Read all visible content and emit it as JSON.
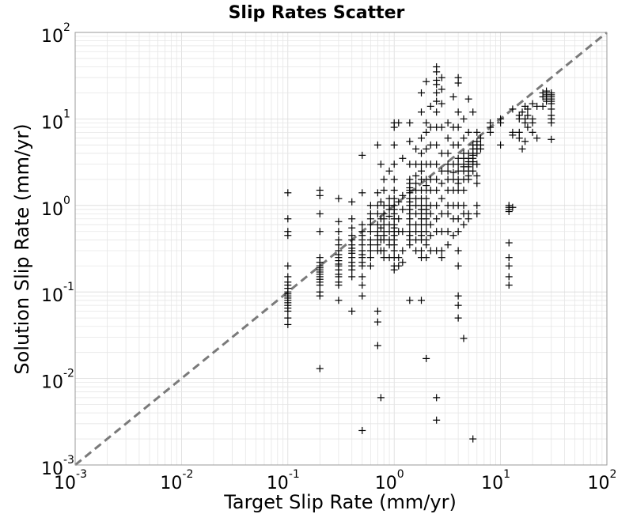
{
  "chart_data": {
    "type": "scatter",
    "title": "Slip Rates Scatter",
    "xlabel": "Target Slip Rate (mm/yr)",
    "ylabel": "Solution Slip Rate (mm/yr)",
    "xscale": "log",
    "yscale": "log",
    "xlim": [
      0.001,
      100
    ],
    "ylim": [
      0.001,
      100
    ],
    "grid": true,
    "marker": "+",
    "marker_color": "#000000",
    "reference_line": {
      "style": "dashed",
      "color": "#7a7a7a",
      "from": [
        0.001,
        0.001
      ],
      "to": [
        100,
        100
      ]
    },
    "x_ticks": [
      {
        "base": "10",
        "exp": "-3"
      },
      {
        "base": "10",
        "exp": "-2"
      },
      {
        "base": "10",
        "exp": "-1"
      },
      {
        "base": "10",
        "exp": "0"
      },
      {
        "base": "10",
        "exp": "1"
      },
      {
        "base": "10",
        "exp": "2"
      }
    ],
    "y_ticks": [
      {
        "base": "10",
        "exp": "-3"
      },
      {
        "base": "10",
        "exp": "-2"
      },
      {
        "base": "10",
        "exp": "-1"
      },
      {
        "base": "10",
        "exp": "0"
      },
      {
        "base": "10",
        "exp": "1"
      },
      {
        "base": "10",
        "exp": "2"
      }
    ],
    "points": [
      [
        0.1,
        1.4
      ],
      [
        0.1,
        0.7
      ],
      [
        0.1,
        0.5
      ],
      [
        0.1,
        0.45
      ],
      [
        0.1,
        0.2
      ],
      [
        0.1,
        0.15
      ],
      [
        0.1,
        0.13
      ],
      [
        0.1,
        0.12
      ],
      [
        0.1,
        0.11
      ],
      [
        0.1,
        0.1
      ],
      [
        0.1,
        0.095
      ],
      [
        0.1,
        0.09
      ],
      [
        0.1,
        0.085
      ],
      [
        0.1,
        0.08
      ],
      [
        0.1,
        0.075
      ],
      [
        0.1,
        0.07
      ],
      [
        0.1,
        0.065
      ],
      [
        0.1,
        0.06
      ],
      [
        0.1,
        0.05
      ],
      [
        0.1,
        0.042
      ],
      [
        0.2,
        1.5
      ],
      [
        0.2,
        1.3
      ],
      [
        0.2,
        0.8
      ],
      [
        0.2,
        0.5
      ],
      [
        0.2,
        0.25
      ],
      [
        0.2,
        0.22
      ],
      [
        0.2,
        0.2
      ],
      [
        0.2,
        0.19
      ],
      [
        0.2,
        0.18
      ],
      [
        0.2,
        0.17
      ],
      [
        0.2,
        0.16
      ],
      [
        0.2,
        0.15
      ],
      [
        0.2,
        0.14
      ],
      [
        0.2,
        0.13
      ],
      [
        0.2,
        0.12
      ],
      [
        0.2,
        0.1
      ],
      [
        0.2,
        0.09
      ],
      [
        0.2,
        0.013
      ],
      [
        0.3,
        1.2
      ],
      [
        0.3,
        0.65
      ],
      [
        0.3,
        0.5
      ],
      [
        0.3,
        0.4
      ],
      [
        0.3,
        0.35
      ],
      [
        0.3,
        0.3
      ],
      [
        0.3,
        0.27
      ],
      [
        0.3,
        0.25
      ],
      [
        0.3,
        0.23
      ],
      [
        0.3,
        0.21
      ],
      [
        0.3,
        0.2
      ],
      [
        0.3,
        0.18
      ],
      [
        0.3,
        0.16
      ],
      [
        0.3,
        0.15
      ],
      [
        0.3,
        0.13
      ],
      [
        0.3,
        0.12
      ],
      [
        0.3,
        0.08
      ],
      [
        0.4,
        1.1
      ],
      [
        0.4,
        0.7
      ],
      [
        0.4,
        0.55
      ],
      [
        0.4,
        0.45
      ],
      [
        0.4,
        0.4
      ],
      [
        0.4,
        0.35
      ],
      [
        0.4,
        0.32
      ],
      [
        0.4,
        0.3
      ],
      [
        0.4,
        0.28
      ],
      [
        0.4,
        0.25
      ],
      [
        0.4,
        0.22
      ],
      [
        0.4,
        0.2
      ],
      [
        0.4,
        0.18
      ],
      [
        0.4,
        0.15
      ],
      [
        0.4,
        0.06
      ],
      [
        0.5,
        3.8
      ],
      [
        0.5,
        1.4
      ],
      [
        0.5,
        0.6
      ],
      [
        0.5,
        0.5
      ],
      [
        0.5,
        0.45
      ],
      [
        0.5,
        0.4
      ],
      [
        0.5,
        0.35
      ],
      [
        0.5,
        0.3
      ],
      [
        0.5,
        0.27
      ],
      [
        0.5,
        0.25
      ],
      [
        0.5,
        0.22
      ],
      [
        0.5,
        0.2
      ],
      [
        0.5,
        0.15
      ],
      [
        0.5,
        0.12
      ],
      [
        0.5,
        0.09
      ],
      [
        0.5,
        0.0025
      ],
      [
        0.6,
        1.0
      ],
      [
        0.6,
        0.7
      ],
      [
        0.6,
        0.6
      ],
      [
        0.6,
        0.5
      ],
      [
        0.6,
        0.4
      ],
      [
        0.6,
        0.35
      ],
      [
        0.6,
        0.3
      ],
      [
        0.6,
        0.2
      ],
      [
        0.6,
        0.25
      ],
      [
        0.6,
        0.8
      ],
      [
        0.7,
        5.0
      ],
      [
        0.7,
        1.4
      ],
      [
        0.7,
        1.0
      ],
      [
        0.7,
        0.8
      ],
      [
        0.7,
        0.6
      ],
      [
        0.7,
        0.5
      ],
      [
        0.7,
        0.45
      ],
      [
        0.7,
        0.4
      ],
      [
        0.7,
        0.35
      ],
      [
        0.7,
        0.3
      ],
      [
        0.7,
        0.06
      ],
      [
        0.7,
        0.045
      ],
      [
        0.7,
        0.024
      ],
      [
        0.75,
        3.0
      ],
      [
        0.75,
        1.1
      ],
      [
        0.75,
        0.7
      ],
      [
        0.75,
        0.55
      ],
      [
        0.75,
        0.4
      ],
      [
        0.75,
        0.3
      ],
      [
        0.75,
        0.006
      ],
      [
        0.8,
        2.0
      ],
      [
        0.8,
        1.5
      ],
      [
        0.8,
        1.0
      ],
      [
        0.8,
        0.8
      ],
      [
        0.8,
        0.7
      ],
      [
        0.8,
        0.6
      ],
      [
        0.8,
        0.5
      ],
      [
        0.8,
        0.45
      ],
      [
        0.8,
        0.4
      ],
      [
        0.8,
        0.3
      ],
      [
        0.8,
        0.25
      ],
      [
        0.9,
        2.5
      ],
      [
        0.9,
        1.2
      ],
      [
        0.9,
        1.0
      ],
      [
        0.9,
        0.9
      ],
      [
        0.9,
        0.75
      ],
      [
        0.9,
        0.6
      ],
      [
        0.9,
        0.5
      ],
      [
        0.9,
        0.4
      ],
      [
        0.9,
        0.35
      ],
      [
        0.9,
        0.25
      ],
      [
        1.0,
        9.0
      ],
      [
        1.0,
        8.0
      ],
      [
        1.0,
        5.0
      ],
      [
        1.0,
        3.0
      ],
      [
        1.0,
        2.0
      ],
      [
        1.0,
        1.5
      ],
      [
        1.0,
        1.2
      ],
      [
        1.0,
        1.0
      ],
      [
        1.0,
        0.9
      ],
      [
        1.0,
        0.8
      ],
      [
        1.0,
        0.7
      ],
      [
        1.0,
        0.6
      ],
      [
        1.0,
        0.55
      ],
      [
        1.0,
        0.5
      ],
      [
        1.0,
        0.45
      ],
      [
        1.0,
        0.4
      ],
      [
        1.0,
        0.35
      ],
      [
        1.0,
        0.3
      ],
      [
        1.0,
        0.25
      ],
      [
        1.0,
        0.2
      ],
      [
        1.0,
        0.18
      ],
      [
        1.1,
        9.0
      ],
      [
        1.1,
        1.1
      ],
      [
        1.1,
        0.7
      ],
      [
        1.1,
        0.5
      ],
      [
        1.1,
        0.25
      ],
      [
        1.1,
        0.2
      ],
      [
        1.2,
        3.5
      ],
      [
        1.2,
        1.3
      ],
      [
        1.2,
        0.9
      ],
      [
        1.2,
        0.5
      ],
      [
        1.2,
        0.3
      ],
      [
        1.2,
        0.22
      ],
      [
        1.4,
        9.0
      ],
      [
        1.4,
        5.5
      ],
      [
        1.4,
        3.0
      ],
      [
        1.4,
        2.0
      ],
      [
        1.4,
        1.8
      ],
      [
        1.4,
        1.6
      ],
      [
        1.4,
        1.5
      ],
      [
        1.4,
        1.4
      ],
      [
        1.4,
        1.2
      ],
      [
        1.4,
        1.1
      ],
      [
        1.4,
        1.0
      ],
      [
        1.4,
        0.9
      ],
      [
        1.4,
        0.8
      ],
      [
        1.4,
        0.7
      ],
      [
        1.4,
        0.6
      ],
      [
        1.4,
        0.5
      ],
      [
        1.4,
        0.45
      ],
      [
        1.4,
        0.4
      ],
      [
        1.4,
        0.35
      ],
      [
        1.4,
        0.08
      ],
      [
        1.6,
        4.5
      ],
      [
        1.6,
        3.0
      ],
      [
        1.6,
        2.2
      ],
      [
        1.6,
        1.8
      ],
      [
        1.6,
        1.5
      ],
      [
        1.6,
        1.2
      ],
      [
        1.6,
        1.0
      ],
      [
        1.6,
        0.8
      ],
      [
        1.6,
        0.6
      ],
      [
        1.6,
        0.5
      ],
      [
        1.6,
        0.4
      ],
      [
        1.6,
        0.3
      ],
      [
        1.8,
        20.0
      ],
      [
        1.8,
        12.0
      ],
      [
        1.8,
        6.0
      ],
      [
        1.8,
        4.0
      ],
      [
        1.8,
        3.0
      ],
      [
        1.8,
        2.5
      ],
      [
        1.8,
        2.0
      ],
      [
        1.8,
        1.5
      ],
      [
        1.8,
        1.2
      ],
      [
        1.8,
        1.0
      ],
      [
        1.8,
        0.9
      ],
      [
        1.8,
        0.8
      ],
      [
        1.8,
        0.7
      ],
      [
        1.8,
        0.6
      ],
      [
        1.8,
        0.5
      ],
      [
        1.8,
        0.45
      ],
      [
        1.8,
        0.4
      ],
      [
        1.8,
        0.3
      ],
      [
        1.8,
        0.25
      ],
      [
        1.8,
        0.08
      ],
      [
        2.0,
        27.0
      ],
      [
        2.0,
        9.0
      ],
      [
        2.0,
        7.0
      ],
      [
        2.0,
        4.5
      ],
      [
        2.0,
        3.0
      ],
      [
        2.0,
        2.0
      ],
      [
        2.0,
        1.7
      ],
      [
        2.0,
        1.5
      ],
      [
        2.0,
        1.2
      ],
      [
        2.0,
        1.0
      ],
      [
        2.0,
        0.9
      ],
      [
        2.0,
        0.8
      ],
      [
        2.0,
        0.7
      ],
      [
        2.0,
        0.6
      ],
      [
        2.0,
        0.5
      ],
      [
        2.0,
        0.4
      ],
      [
        2.0,
        0.35
      ],
      [
        2.0,
        0.25
      ],
      [
        2.0,
        0.017
      ],
      [
        2.2,
        14.0
      ],
      [
        2.2,
        8.0
      ],
      [
        2.2,
        5.0
      ],
      [
        2.2,
        3.0
      ],
      [
        2.2,
        2.0
      ],
      [
        2.2,
        1.5
      ],
      [
        2.2,
        1.0
      ],
      [
        2.2,
        0.8
      ],
      [
        2.2,
        0.6
      ],
      [
        2.2,
        0.45
      ],
      [
        2.2,
        0.3
      ],
      [
        2.5,
        40.0
      ],
      [
        2.5,
        35.0
      ],
      [
        2.5,
        28.0
      ],
      [
        2.5,
        25.0
      ],
      [
        2.5,
        20.0
      ],
      [
        2.5,
        16.0
      ],
      [
        2.5,
        12.0
      ],
      [
        2.5,
        8.0
      ],
      [
        2.5,
        5.0
      ],
      [
        2.5,
        3.0
      ],
      [
        2.5,
        2.0
      ],
      [
        2.5,
        1.5
      ],
      [
        2.5,
        1.0
      ],
      [
        2.5,
        0.7
      ],
      [
        2.5,
        0.5
      ],
      [
        2.5,
        0.3
      ],
      [
        2.5,
        0.006
      ],
      [
        2.5,
        0.0033
      ],
      [
        2.8,
        30.0
      ],
      [
        2.8,
        22.0
      ],
      [
        2.8,
        15.0
      ],
      [
        2.8,
        8.0
      ],
      [
        2.8,
        4.0
      ],
      [
        2.8,
        2.5
      ],
      [
        2.8,
        1.8
      ],
      [
        2.8,
        1.2
      ],
      [
        2.8,
        0.8
      ],
      [
        2.8,
        0.5
      ],
      [
        2.8,
        0.3
      ],
      [
        2.8,
        0.25
      ],
      [
        3.2,
        9.0
      ],
      [
        3.2,
        6.0
      ],
      [
        3.2,
        4.0
      ],
      [
        3.2,
        3.0
      ],
      [
        3.2,
        2.5
      ],
      [
        3.2,
        2.0
      ],
      [
        3.2,
        1.5
      ],
      [
        3.2,
        1.0
      ],
      [
        3.2,
        0.8
      ],
      [
        3.2,
        0.5
      ],
      [
        3.2,
        0.35
      ],
      [
        3.6,
        18.0
      ],
      [
        3.6,
        8.0
      ],
      [
        3.6,
        5.0
      ],
      [
        3.6,
        3.0
      ],
      [
        3.6,
        2.4
      ],
      [
        3.6,
        2.0
      ],
      [
        3.6,
        1.5
      ],
      [
        3.6,
        1.0
      ],
      [
        3.6,
        0.7
      ],
      [
        3.6,
        0.45
      ],
      [
        4.0,
        30.0
      ],
      [
        4.0,
        26.0
      ],
      [
        4.0,
        12.0
      ],
      [
        4.0,
        8.0
      ],
      [
        4.0,
        5.0
      ],
      [
        4.0,
        3.5
      ],
      [
        4.0,
        3.0
      ],
      [
        4.0,
        2.5
      ],
      [
        4.0,
        2.0
      ],
      [
        4.0,
        1.8
      ],
      [
        4.0,
        1.5
      ],
      [
        4.0,
        1.0
      ],
      [
        4.0,
        0.7
      ],
      [
        4.0,
        0.5
      ],
      [
        4.0,
        0.3
      ],
      [
        4.0,
        0.2
      ],
      [
        4.0,
        0.09
      ],
      [
        4.0,
        0.07
      ],
      [
        4.0,
        0.05
      ],
      [
        4.5,
        10.0
      ],
      [
        4.5,
        6.0
      ],
      [
        4.5,
        4.0
      ],
      [
        4.5,
        3.5
      ],
      [
        4.5,
        3.0
      ],
      [
        4.5,
        2.8
      ],
      [
        4.5,
        2.5
      ],
      [
        4.5,
        2.0
      ],
      [
        4.5,
        1.5
      ],
      [
        4.5,
        1.0
      ],
      [
        4.5,
        0.8
      ],
      [
        4.5,
        0.6
      ],
      [
        4.5,
        0.029
      ],
      [
        5.0,
        17.0
      ],
      [
        5.0,
        7.0
      ],
      [
        5.0,
        4.0
      ],
      [
        5.0,
        3.5
      ],
      [
        5.0,
        3.2
      ],
      [
        5.0,
        3.0
      ],
      [
        5.0,
        2.8
      ],
      [
        5.0,
        2.5
      ],
      [
        5.0,
        2.2
      ],
      [
        5.0,
        2.0
      ],
      [
        5.0,
        0.8
      ],
      [
        5.0,
        0.7
      ],
      [
        5.5,
        12.0
      ],
      [
        5.5,
        5.0
      ],
      [
        5.5,
        4.5
      ],
      [
        5.5,
        4.0
      ],
      [
        5.5,
        3.8
      ],
      [
        5.5,
        3.5
      ],
      [
        5.5,
        3.2
      ],
      [
        5.5,
        3.0
      ],
      [
        5.5,
        2.5
      ],
      [
        5.5,
        0.002
      ],
      [
        6.0,
        7.0
      ],
      [
        6.0,
        5.5
      ],
      [
        6.0,
        5.0
      ],
      [
        6.0,
        4.5
      ],
      [
        6.0,
        4.0
      ],
      [
        6.0,
        3.0
      ],
      [
        6.0,
        2.2
      ],
      [
        6.0,
        1.8
      ],
      [
        6.0,
        1.0
      ],
      [
        6.0,
        0.8
      ],
      [
        6.5,
        6.0
      ],
      [
        6.5,
        5.0
      ],
      [
        6.5,
        4.5
      ],
      [
        8.0,
        9.0
      ],
      [
        8.0,
        8.0
      ],
      [
        8.0,
        7.0
      ],
      [
        10.0,
        10.0
      ],
      [
        10.0,
        9.0
      ],
      [
        10.0,
        5.0
      ],
      [
        12.0,
        1.0
      ],
      [
        12.0,
        0.95
      ],
      [
        12.0,
        0.9
      ],
      [
        12.0,
        0.85
      ],
      [
        12.0,
        0.37
      ],
      [
        12.0,
        0.25
      ],
      [
        12.0,
        0.2
      ],
      [
        12.0,
        0.15
      ],
      [
        12.0,
        0.12
      ],
      [
        13.0,
        13.0
      ],
      [
        13.0,
        7.0
      ],
      [
        13.0,
        6.5
      ],
      [
        13.0,
        0.95
      ],
      [
        15.0,
        11.0
      ],
      [
        15.0,
        10.0
      ],
      [
        15.0,
        7.0
      ],
      [
        15.0,
        6.0
      ],
      [
        16.0,
        12.0
      ],
      [
        16.0,
        4.5
      ],
      [
        17.0,
        14.0
      ],
      [
        17.0,
        10.0
      ],
      [
        17.0,
        9.0
      ],
      [
        17.0,
        5.5
      ],
      [
        18.0,
        13.0
      ],
      [
        18.0,
        11.0
      ],
      [
        18.0,
        8.0
      ],
      [
        20.0,
        15.0
      ],
      [
        20.0,
        10.0
      ],
      [
        20.0,
        9.0
      ],
      [
        20.0,
        7.0
      ],
      [
        22.0,
        14.0
      ],
      [
        22.0,
        6.0
      ],
      [
        25.0,
        20.0
      ],
      [
        25.0,
        18.0
      ],
      [
        25.0,
        14.0
      ],
      [
        27.0,
        21.0
      ],
      [
        27.0,
        20.0
      ],
      [
        27.0,
        19.0
      ],
      [
        27.0,
        18.0
      ],
      [
        27.0,
        17.0
      ],
      [
        27.0,
        16.0
      ],
      [
        30.0,
        20.0
      ],
      [
        30.0,
        19.0
      ],
      [
        30.0,
        18.0
      ],
      [
        30.0,
        17.0
      ],
      [
        30.0,
        16.0
      ],
      [
        30.0,
        15.0
      ],
      [
        30.0,
        13.0
      ],
      [
        30.0,
        11.0
      ],
      [
        30.0,
        10.0
      ],
      [
        30.0,
        9.0
      ],
      [
        30.0,
        5.8
      ]
    ]
  }
}
